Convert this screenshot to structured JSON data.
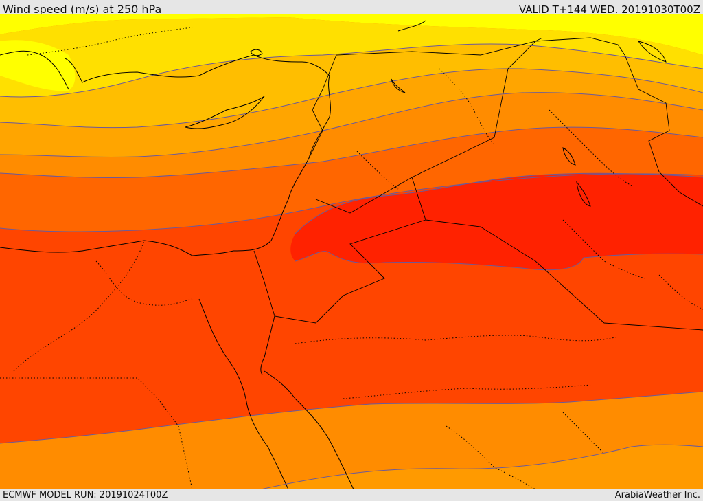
{
  "header": {
    "title": "Wind speed (m/s) at 250 hPa",
    "valid": "VALID T+144 WED. 20191030T00Z"
  },
  "footer": {
    "model_run": "ECMWF MODEL RUN: 20191024T00Z",
    "credit": "ArabiaWeather Inc."
  },
  "colors": {
    "band_yellow": "#ffff00",
    "band_light_gold": "#ffe000",
    "band_gold": "#ffbe00",
    "band_orange_light": "#ffa500",
    "band_orange": "#ff8c00",
    "band_dark_orange": "#ff6600",
    "band_red_orange": "#ff4500",
    "band_red": "#ff2200",
    "contour": "#6b5a9a",
    "coastline": "#000000"
  }
}
